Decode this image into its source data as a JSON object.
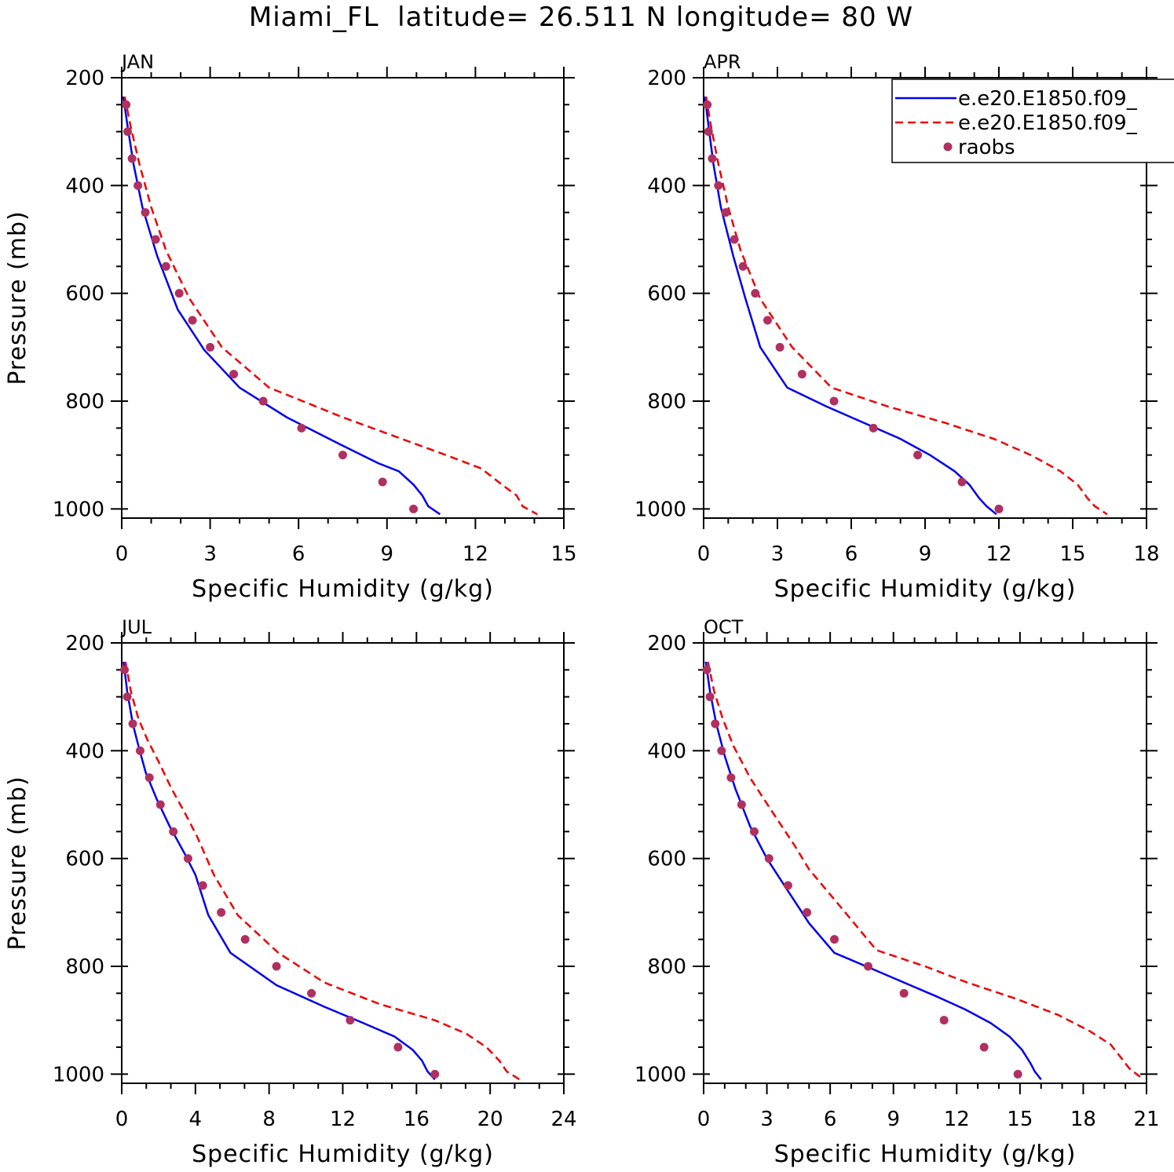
{
  "title": "Miami_FL  latitude= 26.511 N longitude= 80 W",
  "colors": {
    "model1": "#0000ee",
    "model2": "#ee0000",
    "raobs": "#b03060"
  },
  "legend": {
    "placement": "top-right of APR panel",
    "entries": [
      "e.e20.E1850.f09_",
      "e.e20.E1850.f09_",
      "raobs"
    ]
  },
  "chart_data": [
    {
      "type": "line",
      "panel_label": "JAN",
      "xlabel": "Specific Humidity (g/kg)",
      "ylabel": "Pressure (mb)",
      "xlim": [
        0,
        15
      ],
      "ylim": [
        1000,
        200
      ],
      "xticks": [
        0,
        3,
        6,
        9,
        12,
        15
      ],
      "yticks": [
        200,
        400,
        600,
        800,
        1000
      ],
      "y_inverted": true,
      "series": [
        {
          "name": "e.e20.E1850.f09_",
          "style": "solid",
          "points": [
            [
              0.05,
              235
            ],
            [
              0.2,
              290
            ],
            [
              0.4,
              360
            ],
            [
              0.7,
              440
            ],
            [
              1.2,
              530
            ],
            [
              1.9,
              630
            ],
            [
              2.8,
              705
            ],
            [
              4.0,
              775
            ],
            [
              5.6,
              830
            ],
            [
              7.4,
              880
            ],
            [
              8.7,
              915
            ],
            [
              9.4,
              930
            ],
            [
              9.9,
              955
            ],
            [
              10.2,
              975
            ],
            [
              10.4,
              995
            ],
            [
              10.8,
              1010
            ]
          ]
        },
        {
          "name": "e.e20.E1850.f09_",
          "style": "dashed",
          "points": [
            [
              0.1,
              235
            ],
            [
              0.3,
              290
            ],
            [
              0.6,
              360
            ],
            [
              1.0,
              440
            ],
            [
              1.5,
              520
            ],
            [
              2.3,
              610
            ],
            [
              3.4,
              700
            ],
            [
              5.0,
              775
            ],
            [
              7.5,
              830
            ],
            [
              9.5,
              870
            ],
            [
              11.0,
              900
            ],
            [
              12.2,
              925
            ],
            [
              12.9,
              955
            ],
            [
              13.4,
              975
            ],
            [
              13.6,
              995
            ],
            [
              14.1,
              1010
            ]
          ]
        },
        {
          "name": "raobs",
          "style": "dots",
          "points": [
            [
              0.15,
              250
            ],
            [
              0.2,
              300
            ],
            [
              0.35,
              350
            ],
            [
              0.55,
              400
            ],
            [
              0.8,
              450
            ],
            [
              1.15,
              500
            ],
            [
              1.5,
              550
            ],
            [
              1.95,
              600
            ],
            [
              2.4,
              650
            ],
            [
              3.0,
              700
            ],
            [
              3.8,
              750
            ],
            [
              4.8,
              800
            ],
            [
              6.1,
              850
            ],
            [
              7.5,
              900
            ],
            [
              8.85,
              950
            ],
            [
              9.9,
              1000
            ]
          ]
        }
      ]
    },
    {
      "type": "line",
      "panel_label": "APR",
      "xlabel": "Specific Humidity (g/kg)",
      "ylabel": "",
      "xlim": [
        0,
        18
      ],
      "ylim": [
        1000,
        200
      ],
      "xticks": [
        0,
        3,
        6,
        9,
        12,
        15,
        18
      ],
      "yticks": [
        200,
        400,
        600,
        800,
        1000
      ],
      "y_inverted": true,
      "series": [
        {
          "name": "e.e20.E1850.f09_",
          "style": "solid",
          "points": [
            [
              0.05,
              235
            ],
            [
              0.2,
              290
            ],
            [
              0.4,
              360
            ],
            [
              0.7,
              440
            ],
            [
              1.2,
              530
            ],
            [
              1.7,
              610
            ],
            [
              2.3,
              700
            ],
            [
              3.4,
              775
            ],
            [
              5.0,
              810
            ],
            [
              6.5,
              840
            ],
            [
              8.0,
              870
            ],
            [
              9.2,
              900
            ],
            [
              10.2,
              930
            ],
            [
              10.8,
              955
            ],
            [
              11.2,
              980
            ],
            [
              11.5,
              995
            ],
            [
              11.9,
              1010
            ]
          ]
        },
        {
          "name": "e.e20.E1850.f09_",
          "style": "dashed",
          "points": [
            [
              0.1,
              235
            ],
            [
              0.3,
              290
            ],
            [
              0.6,
              360
            ],
            [
              1.0,
              440
            ],
            [
              1.5,
              520
            ],
            [
              2.3,
              610
            ],
            [
              3.6,
              700
            ],
            [
              5.2,
              775
            ],
            [
              7.5,
              810
            ],
            [
              9.8,
              840
            ],
            [
              11.8,
              870
            ],
            [
              13.3,
              900
            ],
            [
              14.5,
              930
            ],
            [
              15.2,
              955
            ],
            [
              15.6,
              980
            ],
            [
              15.9,
              995
            ],
            [
              16.4,
              1010
            ]
          ]
        },
        {
          "name": "raobs",
          "style": "dots",
          "points": [
            [
              0.15,
              250
            ],
            [
              0.2,
              300
            ],
            [
              0.35,
              350
            ],
            [
              0.6,
              400
            ],
            [
              0.9,
              450
            ],
            [
              1.25,
              500
            ],
            [
              1.6,
              550
            ],
            [
              2.1,
              600
            ],
            [
              2.6,
              650
            ],
            [
              3.1,
              700
            ],
            [
              4.0,
              750
            ],
            [
              5.3,
              800
            ],
            [
              6.9,
              850
            ],
            [
              8.7,
              900
            ],
            [
              10.5,
              950
            ],
            [
              12.0,
              1000
            ]
          ]
        }
      ]
    },
    {
      "type": "line",
      "panel_label": "JUL",
      "xlabel": "Specific Humidity (g/kg)",
      "ylabel": "Pressure (mb)",
      "xlim": [
        0,
        24
      ],
      "ylim": [
        1000,
        200
      ],
      "xticks": [
        0,
        4,
        8,
        12,
        16,
        20,
        24
      ],
      "yticks": [
        200,
        400,
        600,
        800,
        1000
      ],
      "y_inverted": true,
      "series": [
        {
          "name": "e.e20.E1850.f09_",
          "style": "solid",
          "points": [
            [
              0.1,
              235
            ],
            [
              0.3,
              290
            ],
            [
              0.6,
              350
            ],
            [
              0.9,
              390
            ],
            [
              1.3,
              440
            ],
            [
              1.9,
              490
            ],
            [
              2.6,
              540
            ],
            [
              3.4,
              590
            ],
            [
              4.0,
              630
            ],
            [
              4.7,
              705
            ],
            [
              5.9,
              775
            ],
            [
              8.4,
              835
            ],
            [
              11.0,
              875
            ],
            [
              13.1,
              905
            ],
            [
              14.8,
              930
            ],
            [
              15.8,
              955
            ],
            [
              16.3,
              975
            ],
            [
              16.6,
              995
            ],
            [
              17.0,
              1010
            ]
          ]
        },
        {
          "name": "e.e20.E1850.f09_",
          "style": "dashed",
          "points": [
            [
              0.2,
              235
            ],
            [
              0.5,
              290
            ],
            [
              0.9,
              340
            ],
            [
              1.4,
              380
            ],
            [
              2.0,
              420
            ],
            [
              2.7,
              470
            ],
            [
              3.5,
              520
            ],
            [
              4.1,
              560
            ],
            [
              5.0,
              630
            ],
            [
              6.3,
              705
            ],
            [
              8.5,
              775
            ],
            [
              11.0,
              830
            ],
            [
              14.0,
              870
            ],
            [
              17.0,
              900
            ],
            [
              18.7,
              925
            ],
            [
              19.8,
              950
            ],
            [
              20.5,
              975
            ],
            [
              20.9,
              995
            ],
            [
              21.6,
              1010
            ]
          ]
        },
        {
          "name": "raobs",
          "style": "dots",
          "points": [
            [
              0.15,
              250
            ],
            [
              0.3,
              300
            ],
            [
              0.6,
              350
            ],
            [
              1.0,
              400
            ],
            [
              1.5,
              450
            ],
            [
              2.1,
              500
            ],
            [
              2.8,
              550
            ],
            [
              3.6,
              600
            ],
            [
              4.4,
              650
            ],
            [
              5.4,
              700
            ],
            [
              6.7,
              750
            ],
            [
              8.4,
              800
            ],
            [
              10.3,
              850
            ],
            [
              12.4,
              900
            ],
            [
              15.0,
              950
            ],
            [
              17.0,
              1000
            ]
          ]
        }
      ]
    },
    {
      "type": "line",
      "panel_label": "OCT",
      "xlabel": "Specific Humidity (g/kg)",
      "ylabel": "",
      "xlim": [
        0,
        21
      ],
      "ylim": [
        1000,
        200
      ],
      "xticks": [
        0,
        3,
        6,
        9,
        12,
        15,
        18,
        21
      ],
      "yticks": [
        200,
        400,
        600,
        800,
        1000
      ],
      "y_inverted": true,
      "series": [
        {
          "name": "e.e20.E1850.f09_",
          "style": "solid",
          "points": [
            [
              0.1,
              235
            ],
            [
              0.3,
              290
            ],
            [
              0.6,
              350
            ],
            [
              1.0,
              410
            ],
            [
              1.5,
              470
            ],
            [
              2.2,
              540
            ],
            [
              3.0,
              600
            ],
            [
              4.0,
              660
            ],
            [
              5.0,
              720
            ],
            [
              6.2,
              775
            ],
            [
              8.0,
              805
            ],
            [
              9.5,
              830
            ],
            [
              11.0,
              855
            ],
            [
              12.4,
              880
            ],
            [
              13.6,
              905
            ],
            [
              14.5,
              930
            ],
            [
              15.1,
              955
            ],
            [
              15.5,
              980
            ],
            [
              15.7,
              995
            ],
            [
              16.0,
              1010
            ]
          ]
        },
        {
          "name": "e.e20.E1850.f09_",
          "style": "dashed",
          "points": [
            [
              0.2,
              235
            ],
            [
              0.5,
              290
            ],
            [
              0.9,
              340
            ],
            [
              1.4,
              390
            ],
            [
              2.2,
              450
            ],
            [
              3.2,
              510
            ],
            [
              4.3,
              575
            ],
            [
              5.0,
              620
            ],
            [
              6.5,
              690
            ],
            [
              8.2,
              770
            ],
            [
              10.5,
              800
            ],
            [
              12.5,
              830
            ],
            [
              14.8,
              860
            ],
            [
              16.8,
              890
            ],
            [
              18.3,
              920
            ],
            [
              19.3,
              945
            ],
            [
              19.8,
              970
            ],
            [
              20.2,
              990
            ],
            [
              20.7,
              1005
            ]
          ]
        },
        {
          "name": "raobs",
          "style": "dots",
          "points": [
            [
              0.15,
              250
            ],
            [
              0.3,
              300
            ],
            [
              0.55,
              350
            ],
            [
              0.85,
              400
            ],
            [
              1.3,
              450
            ],
            [
              1.8,
              500
            ],
            [
              2.4,
              550
            ],
            [
              3.1,
              600
            ],
            [
              4.0,
              650
            ],
            [
              4.9,
              700
            ],
            [
              6.2,
              750
            ],
            [
              7.8,
              800
            ],
            [
              9.5,
              850
            ],
            [
              11.4,
              900
            ],
            [
              13.3,
              950
            ],
            [
              14.9,
              1000
            ]
          ]
        }
      ]
    }
  ]
}
